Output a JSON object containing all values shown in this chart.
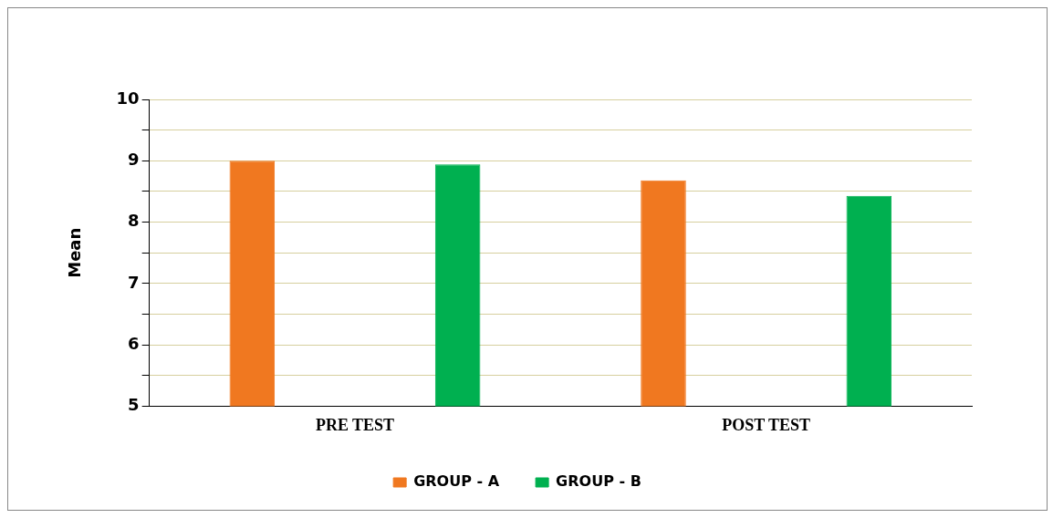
{
  "chart_data": {
    "type": "bar",
    "ylabel": "Mean",
    "categories": [
      "PRE TEST",
      "POST TEST"
    ],
    "series": [
      {
        "name": "GROUP - A",
        "color": "#f07820",
        "values": [
          9.0,
          8.68
        ]
      },
      {
        "name": "GROUP - B",
        "color": "#00b050",
        "values": [
          8.94,
          8.43
        ]
      }
    ],
    "ylim": [
      5,
      10
    ],
    "yticks": [
      5,
      {
        "value": 5.5,
        "label": null
      },
      6,
      {
        "value": 6.5,
        "label": null
      },
      7,
      {
        "value": 7.5,
        "label": null
      },
      8,
      {
        "value": 8.5,
        "label": null
      },
      9,
      {
        "value": 9.5,
        "label": null
      },
      10
    ],
    "grid": "y",
    "legend": "bottom"
  }
}
